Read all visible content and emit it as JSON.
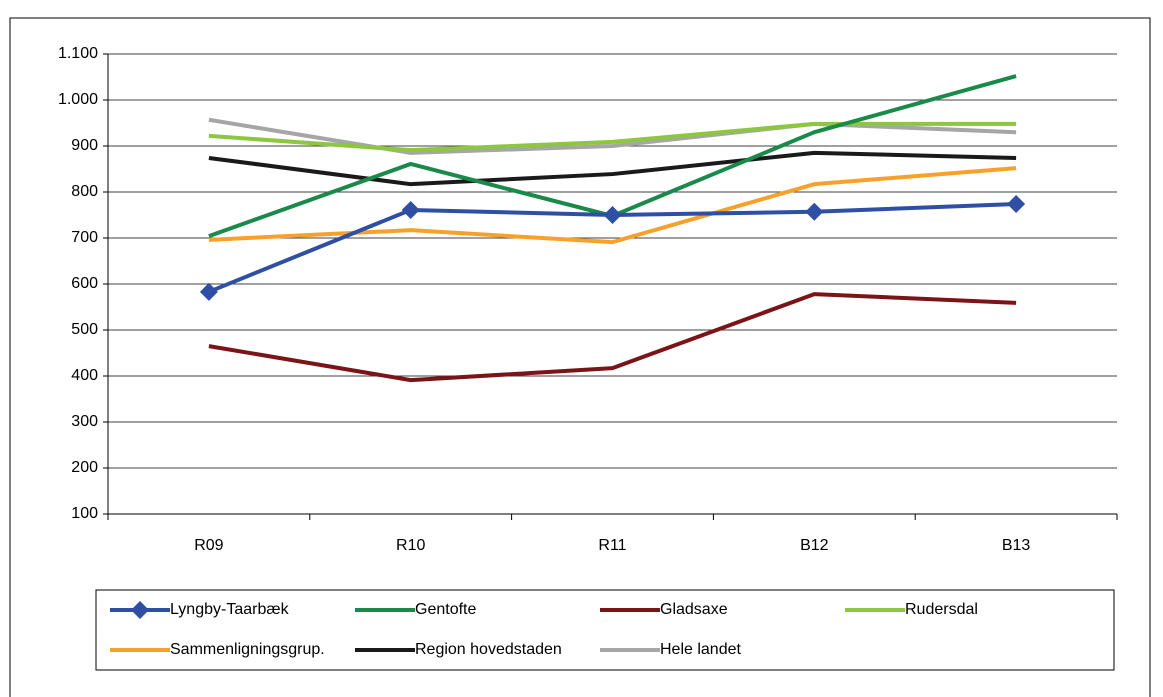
{
  "chart_data": {
    "type": "line",
    "categories": [
      "R09",
      "R10",
      "R11",
      "B12",
      "B13"
    ],
    "series": [
      {
        "name": "Lyngby-Taarbæk",
        "color": "#2e4fa3",
        "marker": "diamond",
        "values": [
          583,
          761,
          750,
          757,
          774
        ]
      },
      {
        "name": "Gentofte",
        "color": "#1a8a4a",
        "values": [
          704,
          861,
          748,
          930,
          1052
        ]
      },
      {
        "name": "Gladsaxe",
        "color": "#7b1416",
        "values": [
          465,
          391,
          417,
          578,
          559
        ]
      },
      {
        "name": "Rudersdal",
        "color": "#8dc63f",
        "values": [
          922,
          891,
          909,
          948,
          948
        ]
      },
      {
        "name": "Sammenligningsgrup.",
        "color": "#f7a12a",
        "values": [
          696,
          717,
          691,
          817,
          852
        ]
      },
      {
        "name": "Region hovedstaden",
        "color": "#1a1a1a",
        "values": [
          874,
          817,
          839,
          885,
          874
        ]
      },
      {
        "name": "Hele landet",
        "color": "#a6a6a6",
        "values": [
          957,
          885,
          900,
          948,
          930
        ]
      }
    ],
    "ylim": [
      100,
      1100
    ],
    "yticks": [
      100,
      200,
      300,
      400,
      500,
      600,
      700,
      800,
      900,
      {
        "value": 1000,
        "label": "1.000"
      },
      {
        "value": 1100,
        "label": "1.100"
      }
    ],
    "grid": true,
    "legend": "bottom"
  }
}
